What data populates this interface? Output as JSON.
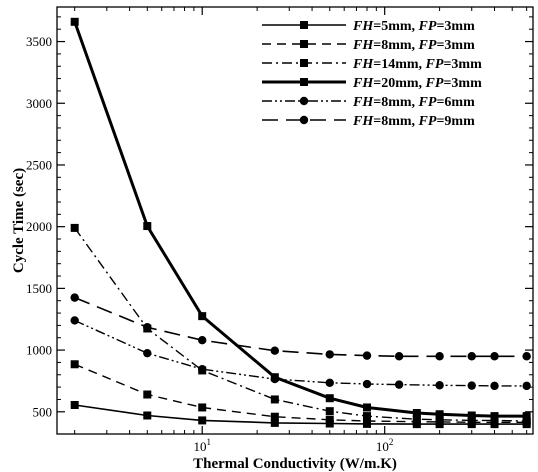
{
  "chart_data": {
    "type": "line",
    "xlabel": "Thermal Conductivity (W/m.K)",
    "ylabel": "Cycle Time (sec)",
    "xscale": "log",
    "xlim": [
      1.6,
      650
    ],
    "ylim": [
      320,
      3780
    ],
    "xticks": [
      10,
      100
    ],
    "xtick_labels": [
      {
        "base": "10",
        "exp": "1"
      },
      {
        "base": "10",
        "exp": "2"
      }
    ],
    "yticks": [
      500,
      1000,
      1500,
      2000,
      2500,
      3000,
      3500
    ],
    "ytick_labels": [
      "500",
      "1000",
      "1500",
      "2000",
      "2500",
      "3000",
      "3500"
    ],
    "legend_position": "top-right",
    "grid": false,
    "series": [
      {
        "name": "FH=5mm, FP=3mm",
        "label_parts": [
          [
            "FH",
            true
          ],
          [
            "=5mm, ",
            false
          ],
          [
            "FP",
            true
          ],
          [
            "=3mm",
            false
          ]
        ],
        "style": "solid",
        "marker": "square",
        "x": [
          2,
          5,
          10,
          25,
          50,
          80,
          150,
          200,
          300,
          400,
          600
        ],
        "y": [
          555,
          470,
          430,
          410,
          405,
          402,
          400,
          400,
          400,
          400,
          400
        ]
      },
      {
        "name": "FH=8mm, FP=3mm",
        "label_parts": [
          [
            "FH",
            true
          ],
          [
            "=8mm, ",
            false
          ],
          [
            "FP",
            true
          ],
          [
            "=3mm",
            false
          ]
        ],
        "style": "dash",
        "marker": "square",
        "x": [
          2,
          5,
          10,
          25,
          50,
          80,
          150,
          200,
          300,
          400,
          600
        ],
        "y": [
          885,
          640,
          535,
          460,
          435,
          425,
          420,
          418,
          415,
          415,
          415
        ]
      },
      {
        "name": "FH=14mm, FP=3mm",
        "label_parts": [
          [
            "FH",
            true
          ],
          [
            "=14mm, ",
            false
          ],
          [
            "FP",
            true
          ],
          [
            "=3mm",
            false
          ]
        ],
        "style": "dashdot",
        "marker": "square",
        "x": [
          2,
          5,
          10,
          25,
          50,
          80,
          150,
          200,
          300,
          400,
          600
        ],
        "y": [
          1990,
          1175,
          835,
          600,
          505,
          465,
          440,
          435,
          430,
          430,
          425
        ]
      },
      {
        "name": "FH=20mm, FP=3mm",
        "label_parts": [
          [
            "FH",
            true
          ],
          [
            "=20mm, ",
            false
          ],
          [
            "FP",
            true
          ],
          [
            "=3mm",
            false
          ]
        ],
        "style": "thick",
        "marker": "square",
        "x": [
          2,
          5,
          10,
          25,
          50,
          80,
          150,
          200,
          300,
          400,
          600
        ],
        "y": [
          3660,
          2005,
          1275,
          780,
          610,
          535,
          490,
          480,
          470,
          465,
          465
        ]
      },
      {
        "name": "FH=8mm, FP=6mm",
        "label_parts": [
          [
            "FH",
            true
          ],
          [
            "=8mm, ",
            false
          ],
          [
            "FP",
            true
          ],
          [
            "=6mm",
            false
          ]
        ],
        "style": "dashdotdot",
        "marker": "circle",
        "x": [
          2,
          5,
          10,
          25,
          50,
          80,
          120,
          200,
          300,
          400,
          600
        ],
        "y": [
          1240,
          975,
          845,
          765,
          735,
          725,
          720,
          715,
          712,
          710,
          710
        ]
      },
      {
        "name": "FH=8mm, FP=9mm",
        "label_parts": [
          [
            "FH",
            true
          ],
          [
            "=8mm, ",
            false
          ],
          [
            "FP",
            true
          ],
          [
            "=9mm",
            false
          ]
        ],
        "style": "longdash",
        "marker": "circle",
        "x": [
          2,
          5,
          10,
          25,
          50,
          80,
          120,
          200,
          300,
          400,
          600
        ],
        "y": [
          1425,
          1185,
          1080,
          995,
          965,
          955,
          950,
          950,
          950,
          950,
          950
        ]
      }
    ]
  }
}
